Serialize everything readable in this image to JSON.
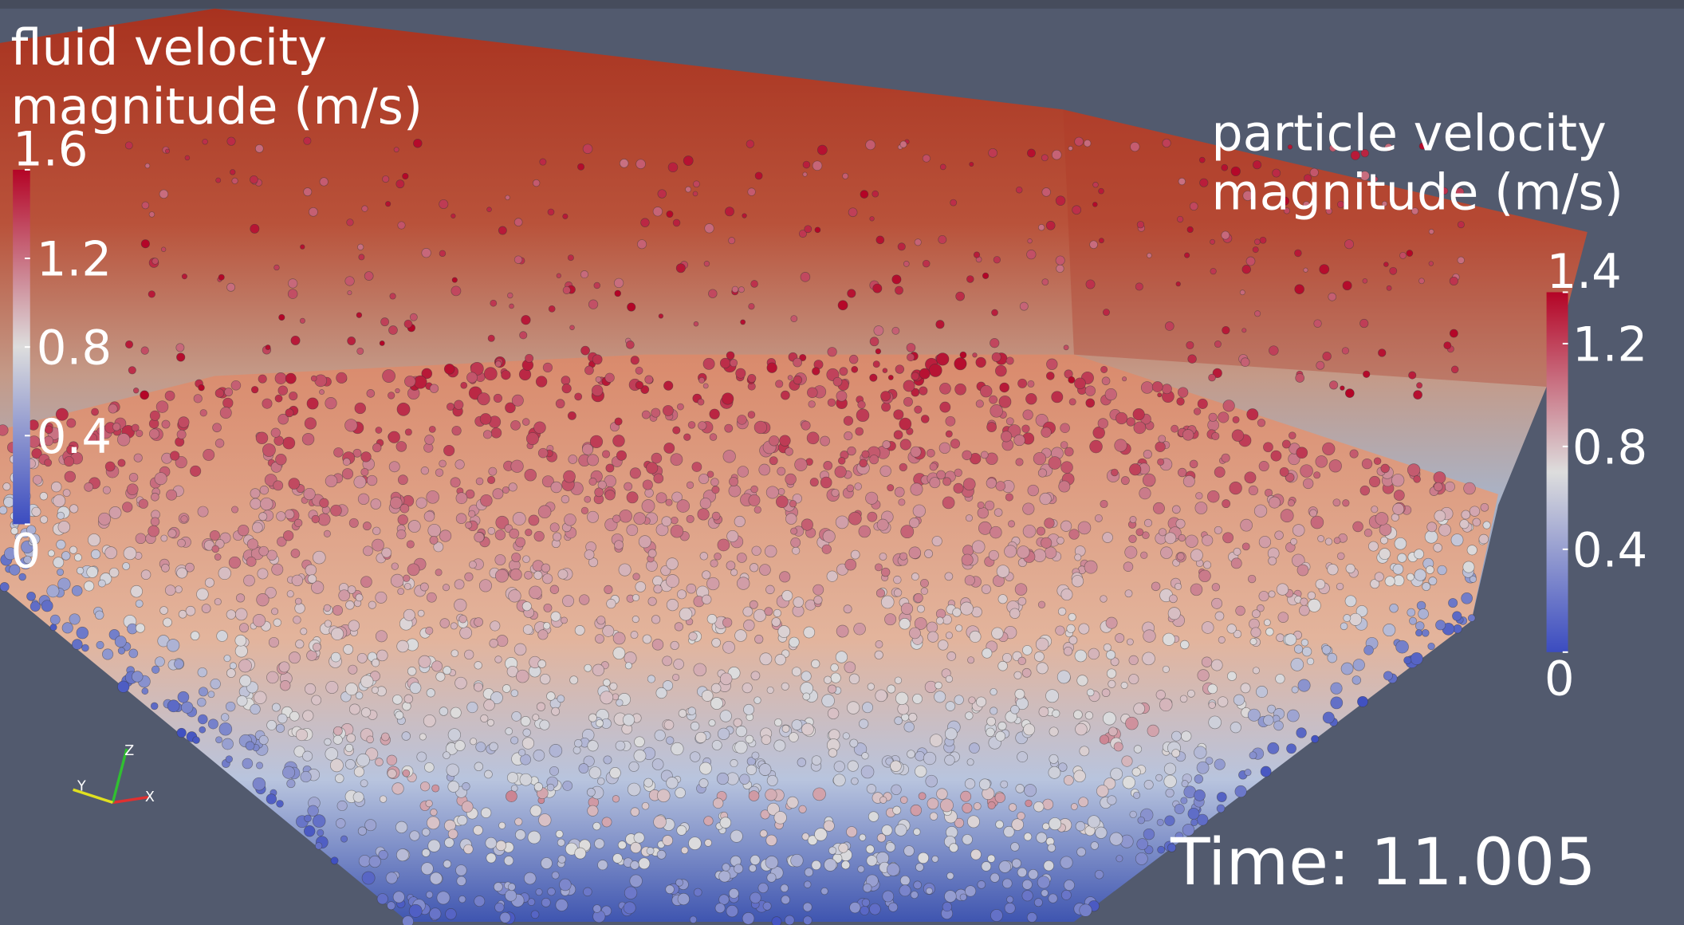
{
  "fluid_legend": {
    "title": [
      "fluid velocity",
      "magnitude (m/s)"
    ],
    "ticks": [
      0,
      0.4,
      0.8,
      1.2,
      1.6
    ]
  },
  "particle_legend": {
    "title": [
      "particle velocity",
      "magnitude (m/s)"
    ],
    "ticks": [
      0,
      0.4,
      0.8,
      1.2,
      1.4
    ]
  },
  "time_label": "Time: 11.005",
  "axes": {
    "x": "X",
    "y": "Y",
    "z": "Z"
  }
}
